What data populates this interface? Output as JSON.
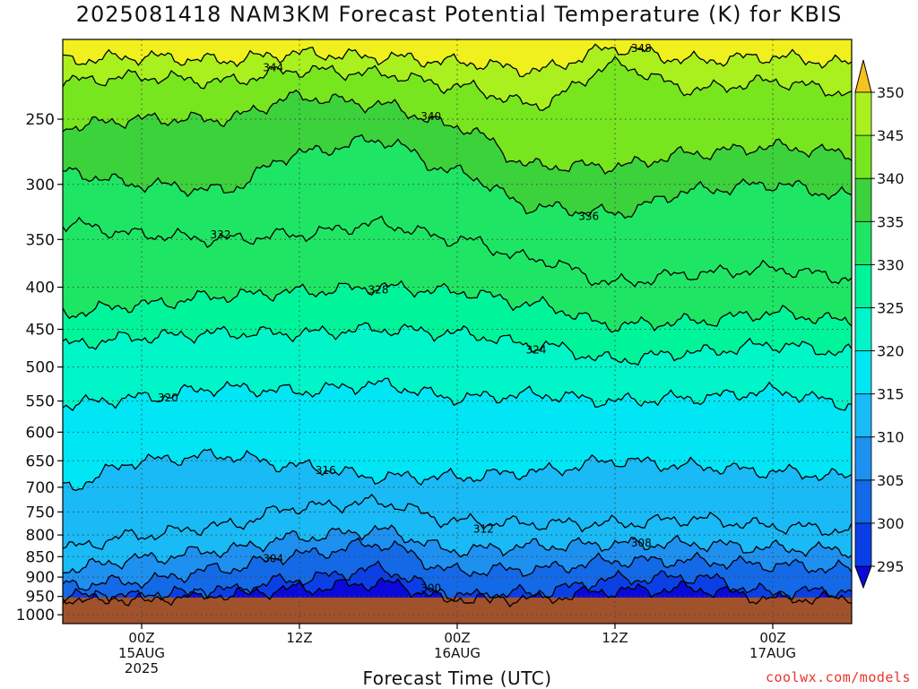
{
  "title": "2025081418 NAM3KM Forecast Potential Temperature (K) for KBIS",
  "xlabel": "Forecast Time (UTC)",
  "credit": "coolwx.com/models",
  "chart_data": {
    "type": "heatmap",
    "title": "2025081418 NAM3KM Forecast Potential Temperature (K) for KBIS",
    "xlabel": "Forecast Time (UTC)",
    "ylabel": "",
    "x_axis": {
      "ticks": [
        {
          "label": "00Z",
          "sub1": "15AUG",
          "sub2": "2025",
          "hour": 6
        },
        {
          "label": "12Z",
          "sub1": "",
          "sub2": "",
          "hour": 18
        },
        {
          "label": "00Z",
          "sub1": "16AUG",
          "sub2": "",
          "hour": 30
        },
        {
          "label": "12Z",
          "sub1": "",
          "sub2": "",
          "hour": 42
        },
        {
          "label": "00Z",
          "sub1": "17AUG",
          "sub2": "",
          "hour": 54
        }
      ],
      "range_hours": [
        0,
        60
      ]
    },
    "y_axis": {
      "ticks": [
        250,
        300,
        350,
        400,
        450,
        500,
        550,
        600,
        650,
        700,
        750,
        800,
        850,
        900,
        950,
        1000
      ],
      "range": [
        200,
        1025
      ],
      "reversed": true,
      "scale": "log"
    },
    "surface_pressure": 953,
    "grid": true,
    "colorbar": {
      "levels": [
        295,
        300,
        305,
        310,
        315,
        320,
        325,
        330,
        335,
        340,
        345,
        350
      ],
      "colors": [
        "#0a0ad8",
        "#0b3fe6",
        "#1469e6",
        "#1e90f0",
        "#19baf5",
        "#00e6f5",
        "#00f5c8",
        "#00f59b",
        "#1ee664",
        "#3cd23c",
        "#78e61e",
        "#aaf01e",
        "#f0f01e",
        "#f5c31e"
      ]
    },
    "isentropes": [
      {
        "value": 296,
        "label": ""
      },
      {
        "value": 300,
        "label": "300"
      },
      {
        "value": 304,
        "label": "304"
      },
      {
        "value": 308,
        "label": "308"
      },
      {
        "value": 312,
        "label": "312"
      },
      {
        "value": 316,
        "label": "316"
      },
      {
        "value": 320,
        "label": "320"
      },
      {
        "value": 324,
        "label": "324"
      },
      {
        "value": 328,
        "label": "328"
      },
      {
        "value": 332,
        "label": "332"
      },
      {
        "value": 336,
        "label": "336"
      },
      {
        "value": 340,
        "label": "340"
      },
      {
        "value": 344,
        "label": "344"
      },
      {
        "value": 348,
        "label": "348"
      }
    ],
    "isentrope_pressure": {
      "hours": [
        0,
        6,
        12,
        18,
        24,
        30,
        36,
        42,
        48,
        54,
        60
      ],
      "levels": {
        "296": [
          955,
          955,
          945,
          930,
          915,
          955,
          955,
          935,
          930,
          955,
          955
        ],
        "300": [
          950,
          950,
          935,
          905,
          880,
          950,
          940,
          905,
          900,
          940,
          935
        ],
        "304": [
          920,
          910,
          880,
          845,
          820,
          885,
          880,
          860,
          860,
          870,
          880
        ],
        "308": [
          880,
          855,
          835,
          805,
          790,
          835,
          825,
          820,
          820,
          830,
          835
        ],
        "312": [
          830,
          800,
          780,
          740,
          730,
          770,
          775,
          775,
          765,
          780,
          790
        ],
        "316": [
          700,
          650,
          640,
          660,
          680,
          680,
          670,
          650,
          660,
          670,
          680
        ],
        "320": [
          555,
          545,
          530,
          535,
          525,
          545,
          540,
          550,
          545,
          535,
          555
        ],
        "324": [
          470,
          460,
          455,
          455,
          450,
          455,
          470,
          490,
          480,
          470,
          480
        ],
        "328": [
          430,
          420,
          410,
          405,
          400,
          405,
          420,
          445,
          440,
          430,
          440
        ],
        "332": [
          335,
          345,
          350,
          345,
          335,
          350,
          370,
          395,
          385,
          380,
          390
        ],
        "336": [
          290,
          300,
          305,
          275,
          265,
          290,
          320,
          325,
          305,
          300,
          310
        ],
        "340": [
          255,
          250,
          250,
          235,
          240,
          255,
          285,
          285,
          275,
          270,
          275
        ],
        "344": [
          225,
          222,
          225,
          218,
          220,
          228,
          240,
          215,
          230,
          225,
          232
        ],
        "348": [
          212,
          210,
          212,
          208,
          210,
          213,
          218,
          205,
          212,
          210,
          214
        ]
      }
    }
  }
}
